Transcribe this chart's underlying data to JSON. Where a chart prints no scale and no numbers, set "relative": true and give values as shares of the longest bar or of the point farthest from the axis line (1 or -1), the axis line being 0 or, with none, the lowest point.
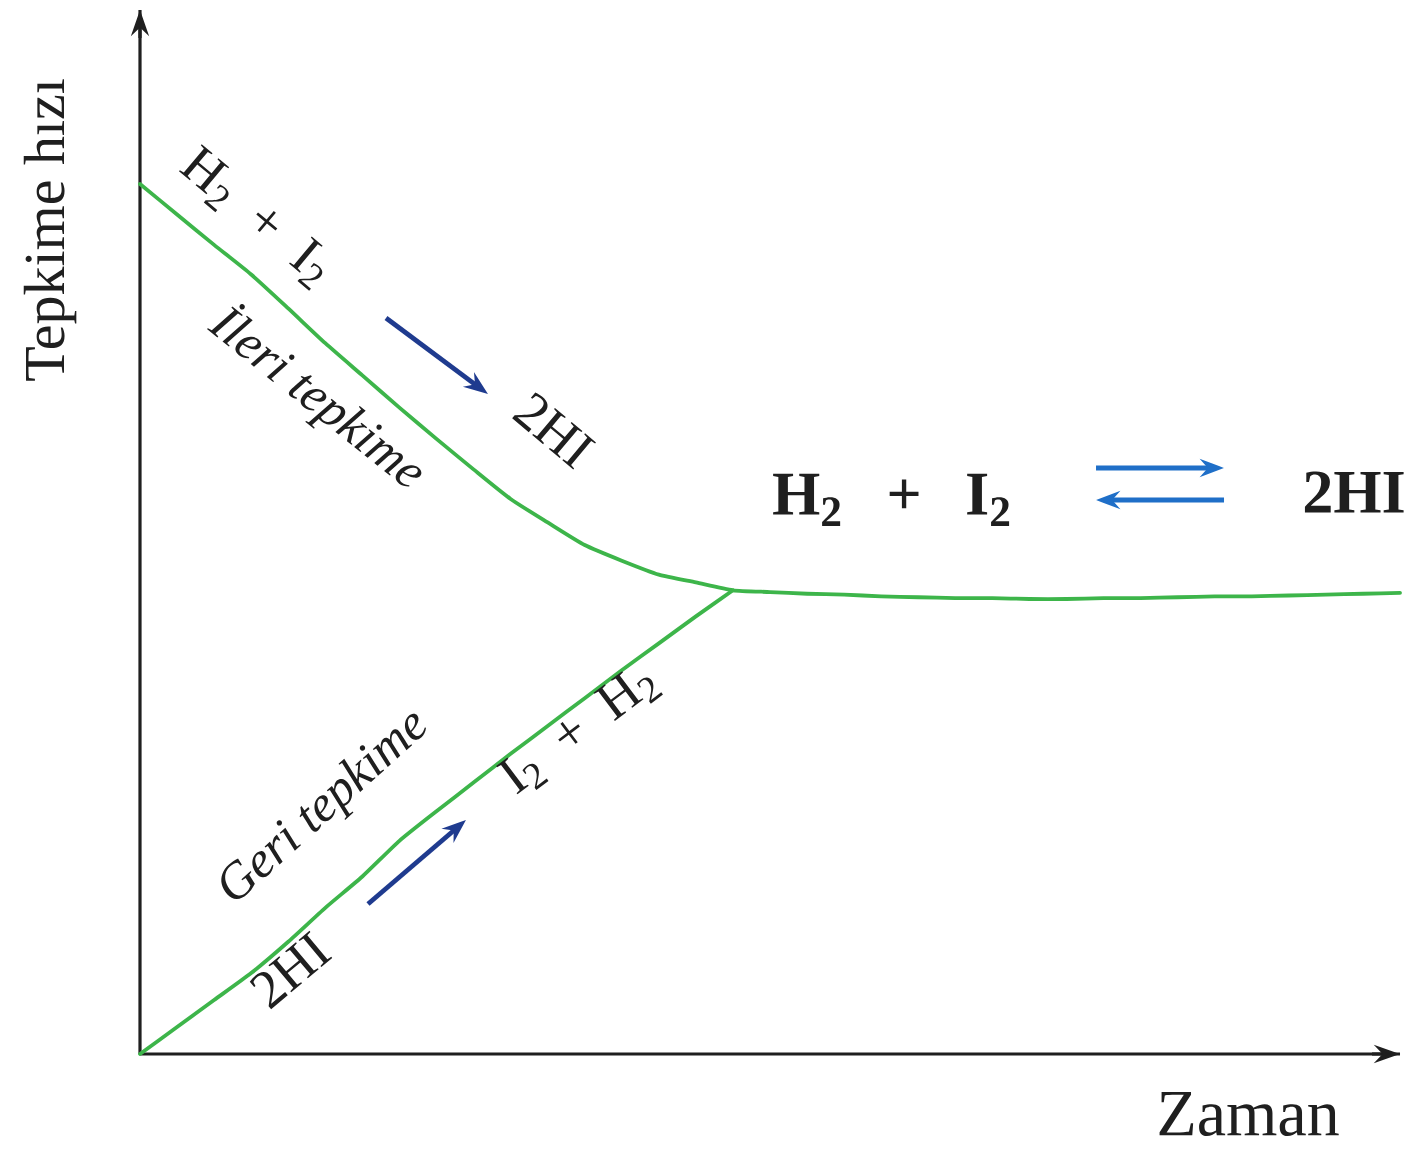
{
  "chart_data": {
    "type": "line",
    "relative": true,
    "xlabel": "Zaman",
    "ylabel": "Tepkime hızı",
    "categories": [
      null,
      null,
      null,
      null,
      null,
      null,
      null,
      null,
      null,
      null,
      null,
      null,
      null,
      null,
      null,
      null,
      null,
      null,
      null,
      null,
      null,
      null,
      null,
      null,
      null,
      null,
      null,
      null,
      null,
      null,
      null,
      null,
      null,
      null,
      null
    ],
    "series": [
      {
        "name": "İleri tepkime",
        "color": "#3db54a",
        "values": [
          1.0,
          0.965,
          0.93,
          0.896,
          0.857,
          0.817,
          0.78,
          0.743,
          0.707,
          0.672,
          0.638,
          0.611,
          0.585,
          0.567,
          0.551,
          0.542,
          0.533,
          0.531,
          0.529,
          0.528,
          0.526,
          0.525,
          0.524,
          0.524,
          0.523,
          0.523,
          0.524,
          0.524,
          0.525,
          0.526,
          0.526,
          0.527,
          0.528,
          0.529,
          0.53
        ]
      },
      {
        "name": "Geri tepkime",
        "color": "#3db54a",
        "values": [
          0.0,
          0.031,
          0.062,
          0.093,
          0.129,
          0.168,
          0.204,
          0.245,
          0.279,
          0.312,
          0.345,
          0.377,
          0.409,
          0.441,
          0.472,
          0.503,
          0.533,
          null,
          null,
          null,
          null,
          null,
          null,
          null,
          null,
          null,
          null,
          null,
          null,
          null,
          null,
          null,
          null,
          null,
          null
        ]
      }
    ],
    "annotations": [
      "H$_{2}$ + I$_{2}$",
      "2HI",
      "2HI",
      "I$_{2}$ + H$_{2}$",
      "H$_{2}$ + I$_{2}$",
      "2HI"
    ]
  }
}
